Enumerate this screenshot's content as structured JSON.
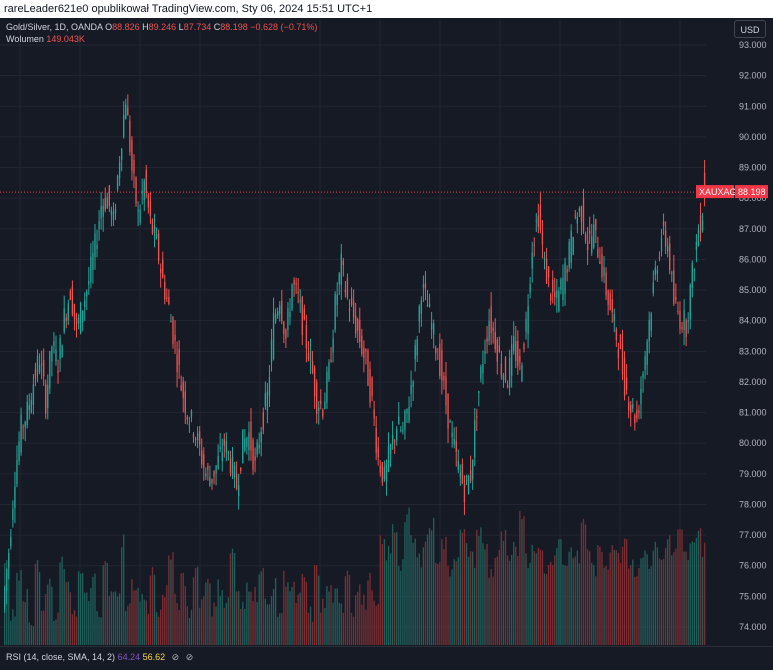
{
  "header": {
    "text": "rareLeader621e0 opublikował TradingView.com, Sty 06, 2024 15:51 UTC+1"
  },
  "legend": {
    "symbol": "Gold/Silver, 1D, OANDA",
    "open_label": "O",
    "open": "88.826",
    "high_label": "H",
    "high": "89.246",
    "low_label": "L",
    "low": "87.734",
    "close_label": "C",
    "close": "88.198",
    "change": "−0.628 (−0.71%)",
    "volume_label": "Wolumen",
    "volume": "149.043K"
  },
  "currency_button": "USD",
  "price_axis": {
    "ticks": [
      "93.000",
      "92.000",
      "91.000",
      "90.000",
      "89.000",
      "88.000",
      "87.000",
      "86.000",
      "85.000",
      "84.000",
      "83.000",
      "82.000",
      "81.000",
      "80.000",
      "79.000",
      "78.000",
      "77.000",
      "76.000",
      "75.000",
      "74.000"
    ]
  },
  "last_price": {
    "symbol": "XAUXAG",
    "value": "88.198",
    "color": "#f23645"
  },
  "rsi": {
    "label": "RSI (14, close, SMA, 14, 2)",
    "value1": "64.24",
    "value2": "56.62",
    "value1_color": "#7e57c2",
    "value2_color": "#f5d547"
  },
  "colors": {
    "up": "#26a69a",
    "down": "#ef5350",
    "background": "#161a25",
    "grid": "#232632"
  },
  "chart_data": {
    "type": "candlestick",
    "symbol": "XAUXAG",
    "ylim": [
      73.6,
      93.3
    ],
    "price_path": [
      74.6,
      76.5,
      79,
      80.5,
      81,
      82,
      82.8,
      81.4,
      83.2,
      82.6,
      84.1,
      85,
      83.7,
      84.5,
      85.3,
      86.4,
      87.8,
      88,
      87.2,
      89.4,
      91.3,
      88.9,
      87.4,
      88.5,
      87.2,
      86.5,
      85.3,
      84.4,
      83.2,
      81.9,
      81,
      80.5,
      79.8,
      79,
      78.9,
      79.4,
      80,
      79.4,
      78.6,
      80,
      80.3,
      79.2,
      80.6,
      81.5,
      84,
      84.8,
      83.4,
      85.2,
      84.7,
      83.6,
      82.7,
      81.4,
      81.2,
      82.3,
      84.5,
      85.8,
      84.7,
      84.1,
      83.4,
      82.6,
      81.3,
      79.5,
      78.8,
      79.8,
      80.6,
      80.3,
      81.4,
      82.9,
      85.1,
      84.5,
      83.5,
      82.6,
      81.3,
      80.1,
      79.2,
      78.5,
      79,
      81.2,
      82.8,
      84.1,
      83.4,
      82.5,
      82.1,
      83.2,
      82.4,
      83.9,
      86.5,
      87.5,
      85.8,
      84.9,
      84.6,
      85.3,
      86.2,
      87.4,
      87.6,
      86.5,
      86.9,
      86.1,
      85,
      84.1,
      83.2,
      82,
      81.2,
      80.8,
      82.4,
      84,
      85.6,
      86.8,
      86.5,
      84.6,
      84.1,
      83.9,
      85.5,
      87,
      87.8
    ],
    "volume_series": [
      76.2,
      74.5,
      75.6,
      75.1,
      74.3,
      75.9,
      74.8,
      75.4,
      74.2,
      76.1,
      75.2,
      74.6,
      75.7,
      74.9,
      75.5,
      74.3,
      76,
      75,
      75.3,
      76.8,
      74.6,
      75.4,
      75.1,
      74.7,
      75.8,
      74.4,
      75.2,
      76.3,
      74.8,
      75.5,
      74.5,
      75.9,
      74.9,
      75.6,
      74.6,
      75.3,
      74.8,
      76.5,
      75,
      74.6,
      75.4,
      75.1,
      75.8,
      74.7,
      75.3,
      74.5,
      75.6,
      75.2,
      74.9,
      75.5,
      74.4,
      75.8,
      74.7,
      75.2,
      75,
      74.6,
      75.9,
      74.5,
      75.3,
      74.8,
      75.5,
      74.6,
      76.7,
      76.4,
      77.2,
      76.1,
      77.6,
      76.8,
      76.2,
      76.9,
      77.3,
      76.3,
      76.7,
      75.9,
      76.4,
      77,
      76.5,
      76.2,
      77.1,
      76.6,
      75.8,
      76.3,
      76.9,
      76.1,
      76.5,
      77.8,
      76.2,
      76.7,
      76.4,
      75.9,
      76.3,
      76.8,
      76.1,
      76.5,
      76.2,
      77.4,
      76.6,
      75.9,
      76.4,
      76.1,
      76.7,
      76.3,
      76.9,
      76.2,
      75.8,
      76.5,
      76.1,
      76.6,
      76.2,
      76.8,
      76.4,
      77,
      76.3,
      76.6,
      77.2,
      76.5
    ]
  }
}
